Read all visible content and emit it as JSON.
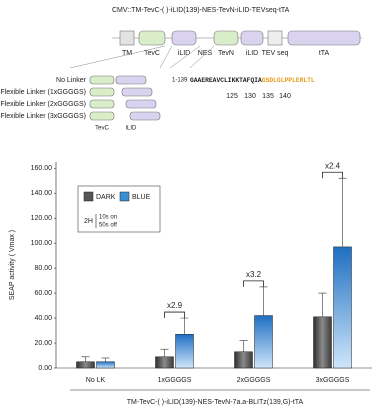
{
  "diagram": {
    "construct": "CMV::TM-TevC-(    )-iLID(139)-NES-TevN-iLID-TEVseq-tTA",
    "blocks": [
      "TM",
      "TevC",
      "iLID",
      "NES",
      "TevN",
      "iLID",
      "TEV seq",
      "tTA"
    ],
    "linkers": [
      "No Linker",
      "Flexible Linker (1xGGGGS)",
      "Flexible Linker (2xGGGGS)",
      "Flexible Linker (3xGGGGS)"
    ],
    "linker_parts": [
      "TevC",
      "iLID"
    ],
    "sequence": {
      "prefix": "1-139",
      "core": "GAAEREAVCLIKKTAFQIA",
      "tail": "GSDLGLPPLERLTL",
      "positions": [
        "125",
        "130",
        "135",
        "140"
      ]
    }
  },
  "chart_data": {
    "type": "bar",
    "categories": [
      "No LK",
      "1xGGGGS",
      "2xGGGGS",
      "3xGGGGS"
    ],
    "series": [
      {
        "name": "DARK",
        "color": "#555555",
        "values": [
          5,
          9,
          13,
          41
        ],
        "errors": [
          4,
          6,
          9,
          19
        ]
      },
      {
        "name": "BLUE",
        "color": "#3a8ed6",
        "values": [
          5,
          27,
          42,
          97
        ],
        "errors": [
          3,
          13,
          23,
          55
        ]
      }
    ],
    "ylabel": "SEAP activity ( Vmax )",
    "xlabel": "TM-TevC-(    )-iLID(139)-NES-TevN-7a.a-BLITz(139,G)-tTA",
    "legend_note": [
      "2H",
      "10s on",
      "50s off"
    ],
    "annotations": [
      "x2.9",
      "x3.2",
      "x2.4"
    ],
    "ylim": [
      0,
      165
    ],
    "yticks": [
      {
        "value": 0,
        "label": "0.00"
      },
      {
        "value": 20,
        "label": "20.00"
      },
      {
        "value": 40,
        "label": "40.00"
      },
      {
        "value": 60,
        "label": "60.00"
      },
      {
        "value": 80,
        "label": "80.00"
      },
      {
        "value": 100,
        "label": "100.00"
      },
      {
        "value": 120,
        "label": "120.00"
      },
      {
        "value": 140,
        "label": "140.00"
      },
      {
        "value": 160,
        "label": "160.00"
      }
    ],
    "grid": false,
    "legend": "upper left"
  }
}
